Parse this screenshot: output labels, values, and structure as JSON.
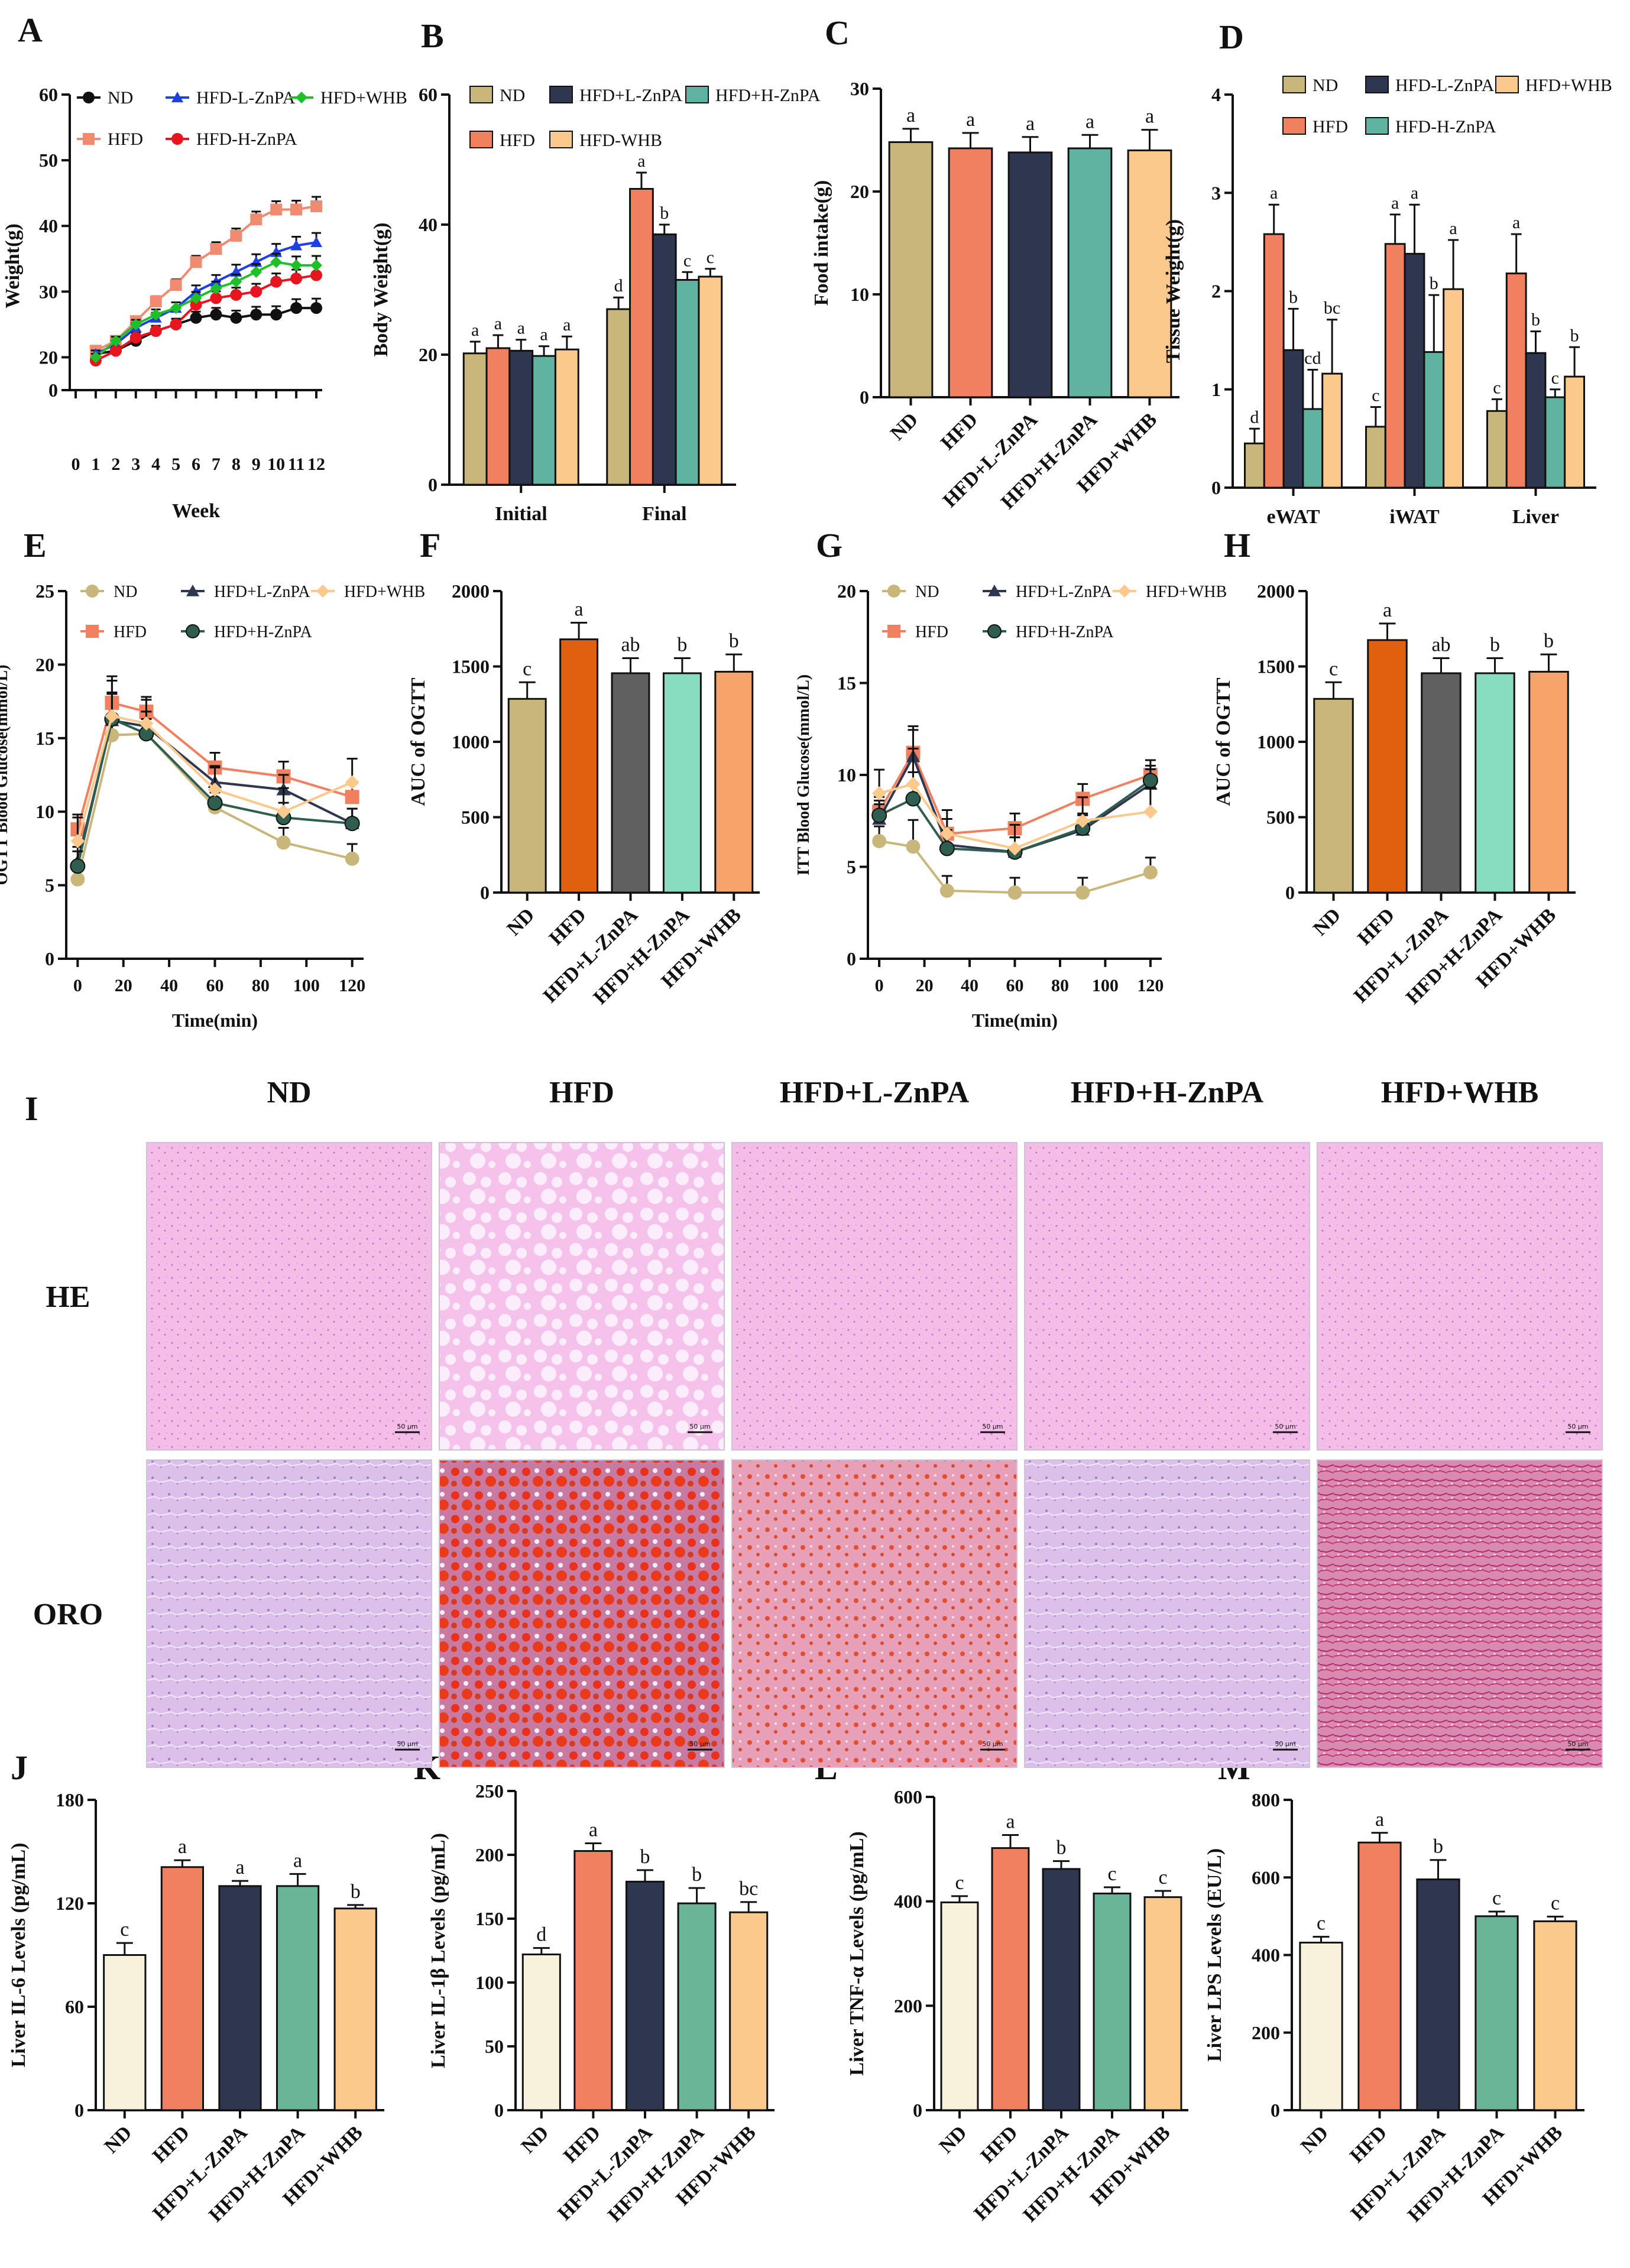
{
  "colors": {
    "ND": "#c9b67a",
    "HFD": "#f08060",
    "L": "#2f3650",
    "H": "#5fb3a0",
    "WHB": "#fbc98c",
    "cream": "#f8f1dc",
    "gray": "#606060",
    "orange": "#e06010",
    "ltgreen": "#88dcc0",
    "orangeF": "#f8a36a",
    "mint": "#6ab497",
    "HE": "#f2b8e6",
    "ORO_bg": "#d8b8e8"
  },
  "chart_data": [
    {
      "id": "A",
      "type": "line",
      "panel_label": "A",
      "ylabel": "Weight(g)",
      "xlabel": "Week",
      "ylim": [
        0,
        60
      ],
      "yticks": [
        0,
        20,
        30,
        40,
        50,
        60
      ],
      "xticks": [
        0,
        1,
        2,
        3,
        4,
        5,
        6,
        7,
        8,
        9,
        10,
        11,
        12
      ],
      "x": [
        1,
        2,
        3,
        4,
        5,
        6,
        7,
        8,
        9,
        10,
        11,
        12
      ],
      "series": [
        {
          "name": "ND",
          "color": "#111111",
          "marker": "circle",
          "values": [
            20.5,
            21,
            22.5,
            24,
            25,
            26,
            26.5,
            26,
            26.5,
            26.5,
            27.5,
            27.5
          ]
        },
        {
          "name": "HFD",
          "color": "#f08a70",
          "marker": "square",
          "values": [
            21,
            22.5,
            25.5,
            28.5,
            31,
            34.5,
            36.5,
            38.5,
            41,
            42.5,
            42.5,
            43
          ]
        },
        {
          "name": "HFD+L-ZnPA",
          "color": "#1d3ee8",
          "marker": "triangle",
          "values": [
            20.5,
            22,
            24.5,
            26,
            27.5,
            30,
            31.5,
            33,
            34.5,
            36,
            37,
            37.5
          ]
        },
        {
          "name": "HFD+H-ZnPA",
          "color": "#e8141e",
          "marker": "circle",
          "values": [
            19.5,
            21,
            23,
            24,
            25,
            28,
            29,
            29.5,
            30,
            31.5,
            32,
            32.5
          ]
        },
        {
          "name": "HFD+WHB",
          "color": "#1fbf2a",
          "marker": "diamond",
          "values": [
            20,
            22.5,
            25,
            26.5,
            27.5,
            29,
            30.5,
            31.5,
            33,
            34.5,
            34,
            34
          ]
        }
      ],
      "legend_order": [
        "ND",
        "HFD-L-ZnPA",
        "HFD+WHB",
        "HFD",
        "HFD-H-ZnPA"
      ],
      "legend_color_ref": [
        "ND",
        "HFD+L-ZnPA",
        "HFD+WHB",
        "HFD",
        "HFD+H-ZnPA"
      ]
    },
    {
      "id": "B",
      "type": "bar",
      "panel_label": "B",
      "ylabel": "Body Weight(g)",
      "ylim": [
        0,
        60
      ],
      "yticks": [
        0,
        20,
        40,
        60
      ],
      "categories": [
        "Initial",
        "Final"
      ],
      "series": [
        {
          "name": "ND",
          "values": [
            20.2,
            27
          ],
          "err": [
            1.8,
            1.8
          ],
          "letters": [
            "a",
            "d"
          ]
        },
        {
          "name": "HFD",
          "values": [
            21,
            45.5
          ],
          "err": [
            2,
            2.5
          ],
          "letters": [
            "a",
            "a"
          ]
        },
        {
          "name": "HFD+L-ZnPA",
          "values": [
            20.6,
            38.5
          ],
          "err": [
            1.7,
            1.5
          ],
          "letters": [
            "a",
            "b"
          ]
        },
        {
          "name": "HFD+H-ZnPA",
          "values": [
            19.8,
            31.5
          ],
          "err": [
            1.5,
            1.2
          ],
          "letters": [
            "a",
            "c"
          ]
        },
        {
          "name": "HFD-WHB",
          "values": [
            20.8,
            32
          ],
          "err": [
            2,
            1.2
          ],
          "letters": [
            "a",
            "c"
          ]
        }
      ],
      "legend_labels": [
        "ND",
        "HFD+L-ZnPA",
        "HFD+H-ZnPA",
        "HFD",
        "HFD-WHB"
      ]
    },
    {
      "id": "C",
      "type": "bar",
      "panel_label": "C",
      "ylabel": "Food intake(g)",
      "ylim": [
        0,
        30
      ],
      "yticks": [
        0,
        10,
        20,
        30
      ],
      "categories": [
        "ND",
        "HFD",
        "HFD+L-ZnPA",
        "HFD+H-ZnPA",
        "HFD+WHB"
      ],
      "values": [
        24.8,
        24.2,
        23.8,
        24.2,
        24
      ],
      "err": [
        1.3,
        1.5,
        1.5,
        1.3,
        2
      ],
      "letters": [
        "a",
        "a",
        "a",
        "a",
        "a"
      ]
    },
    {
      "id": "D",
      "type": "bar",
      "panel_label": "D",
      "ylabel": "Tissue Weight(g)",
      "ylim": [
        0,
        4
      ],
      "yticks": [
        0,
        1,
        2,
        3,
        4
      ],
      "categories": [
        "eWAT",
        "iWAT",
        "Liver"
      ],
      "series": [
        {
          "name": "ND",
          "values": [
            0.45,
            0.62,
            0.78
          ],
          "err": [
            0.15,
            0.2,
            0.12
          ],
          "letters": [
            "d",
            "c",
            "c"
          ]
        },
        {
          "name": "HFD",
          "values": [
            2.58,
            2.48,
            2.18
          ],
          "err": [
            0.3,
            0.3,
            0.4
          ],
          "letters": [
            "a",
            "a",
            "a"
          ]
        },
        {
          "name": "HFD-L-ZnPA",
          "values": [
            1.4,
            2.38,
            1.37
          ],
          "err": [
            0.42,
            0.5,
            0.22
          ],
          "letters": [
            "b",
            "a",
            "b"
          ]
        },
        {
          "name": "HFD-H-ZnPA",
          "values": [
            0.8,
            1.38,
            0.92
          ],
          "err": [
            0.4,
            0.58,
            0.08
          ],
          "letters": [
            "cd",
            "b",
            "c"
          ]
        },
        {
          "name": "HFD+WHB",
          "values": [
            1.16,
            2.02,
            1.13
          ],
          "err": [
            0.55,
            0.5,
            0.3
          ],
          "letters": [
            "bc",
            "a",
            "b"
          ]
        }
      ],
      "legend_labels": [
        "ND",
        "HFD-L-ZnPA",
        "HFD+WHB",
        "HFD",
        "HFD-H-ZnPA"
      ]
    },
    {
      "id": "E",
      "type": "line",
      "panel_label": "E",
      "ylabel": "OGTT Blood Glucose(mmol/L)",
      "xlabel": "Time(min)",
      "ylim": [
        0,
        25
      ],
      "yticks": [
        0,
        5,
        10,
        15,
        20,
        25
      ],
      "xlim": [
        -5,
        125
      ],
      "xticks": [
        0,
        20,
        40,
        60,
        80,
        100,
        120
      ],
      "x": [
        0,
        15,
        30,
        60,
        90,
        120
      ],
      "series": [
        {
          "name": "ND",
          "color": "#c9b67a",
          "marker": "circle",
          "values": [
            5.4,
            15.2,
            15.3,
            10.3,
            7.9,
            6.8
          ]
        },
        {
          "name": "HFD",
          "color": "#f08060",
          "marker": "square",
          "values": [
            8.8,
            17.4,
            16.8,
            13,
            12.4,
            11
          ]
        },
        {
          "name": "HFD+L-ZnPA",
          "color": "#2f3650",
          "marker": "triangle",
          "values": [
            6.6,
            16.2,
            15.8,
            12,
            11.5,
            9.2
          ]
        },
        {
          "name": "HFD+H-ZnPA",
          "color": "#2f5e50",
          "marker": "circle",
          "values": [
            6.3,
            16.3,
            15.3,
            10.6,
            9.6,
            9.2
          ]
        },
        {
          "name": "HFD+WHB",
          "color": "#fbc98c",
          "marker": "diamond",
          "values": [
            8,
            16.5,
            16,
            11.5,
            10,
            12
          ]
        }
      ],
      "legend_order": [
        "ND",
        "HFD+L-ZnPA",
        "HFD+WHB",
        "HFD",
        "HFD+H-ZnPA"
      ]
    },
    {
      "id": "F",
      "type": "bar",
      "panel_label": "F",
      "ylabel": "AUC of OGTT",
      "ylim": [
        0,
        2000
      ],
      "yticks": [
        0,
        500,
        1000,
        1500,
        2000
      ],
      "categories": [
        "ND",
        "HFD",
        "HFD+L-ZnPA",
        "HFD+H-ZnPA",
        "HFD+WHB"
      ],
      "values": [
        1285,
        1680,
        1455,
        1455,
        1465
      ],
      "err": [
        110,
        110,
        100,
        100,
        115
      ],
      "letters": [
        "c",
        "a",
        "ab",
        "b",
        "b"
      ],
      "bar_colors": [
        "#c9b67a",
        "#e06010",
        "#606060",
        "#88dcc0",
        "#f8a36a"
      ]
    },
    {
      "id": "G",
      "type": "line",
      "panel_label": "G",
      "ylabel": "ITT Blood Glucose(mmol/L)",
      "xlabel": "Time(min)",
      "ylim": [
        0,
        20
      ],
      "yticks": [
        0,
        5,
        10,
        15,
        20
      ],
      "xlim": [
        -5,
        125
      ],
      "xticks": [
        0,
        20,
        40,
        60,
        80,
        100,
        120
      ],
      "x": [
        0,
        15,
        30,
        60,
        90,
        120
      ],
      "series": [
        {
          "name": "ND",
          "color": "#c9b67a",
          "marker": "circle",
          "values": [
            6.4,
            6.1,
            3.7,
            3.6,
            3.6,
            4.7
          ]
        },
        {
          "name": "HFD",
          "color": "#f08060",
          "marker": "square",
          "values": [
            8,
            11.2,
            6.8,
            7.1,
            8.7,
            10
          ]
        },
        {
          "name": "HFD+L-ZnPA",
          "color": "#2f3650",
          "marker": "triangle",
          "values": [
            7.6,
            11,
            6.2,
            5.8,
            7,
            9.5
          ]
        },
        {
          "name": "HFD+H-ZnPA",
          "color": "#2f5e50",
          "marker": "circle",
          "values": [
            7.8,
            8.7,
            6,
            5.8,
            7.1,
            9.7
          ]
        },
        {
          "name": "HFD+WHB",
          "color": "#fbc98c",
          "marker": "diamond",
          "values": [
            9,
            9.5,
            6.8,
            6,
            7.5,
            8
          ]
        }
      ],
      "legend_order": [
        "ND",
        "HFD+L-ZnPA",
        "HFD+WHB",
        "HFD",
        "HFD+H-ZnPA"
      ]
    },
    {
      "id": "H",
      "type": "bar",
      "panel_label": "H",
      "ylabel": "AUC of OGTT",
      "ylim": [
        0,
        2000
      ],
      "yticks": [
        0,
        500,
        1000,
        1500,
        2000
      ],
      "categories": [
        "ND",
        "HFD",
        "HFD+L-ZnPA",
        "HFD+H-ZnPA",
        "HFD+WHB"
      ],
      "values": [
        1285,
        1675,
        1455,
        1455,
        1465
      ],
      "err": [
        110,
        110,
        100,
        100,
        115
      ],
      "letters": [
        "c",
        "a",
        "ab",
        "b",
        "b"
      ],
      "bar_colors": [
        "#c9b67a",
        "#e06010",
        "#606060",
        "#88dcc0",
        "#f8a36a"
      ]
    },
    {
      "id": "J",
      "type": "bar",
      "panel_label": "J",
      "ylabel": "Liver IL-6 Levels (pg/mL)",
      "ylim": [
        0,
        180
      ],
      "yticks": [
        0,
        60,
        120,
        180
      ],
      "categories": [
        "ND",
        "HFD",
        "HFD+L-ZnPA",
        "HFD+H-ZnPA",
        "HFD+WHB"
      ],
      "values": [
        90,
        141,
        130,
        130,
        117
      ],
      "err": [
        7,
        4,
        3,
        7,
        2
      ],
      "letters": [
        "c",
        "a",
        "a",
        "a",
        "b"
      ],
      "bar_colors": [
        "#f8f1dc",
        "#f08060",
        "#2f3650",
        "#6ab497",
        "#fbc98c"
      ]
    },
    {
      "id": "K",
      "type": "bar",
      "panel_label": "K",
      "ylabel": "Liver IL-1β Levels (pg/mL)",
      "ylim": [
        0,
        250
      ],
      "yticks": [
        0,
        50,
        100,
        150,
        200,
        250
      ],
      "categories": [
        "ND",
        "HFD",
        "HFD+L-ZnPA",
        "HFD+H-ZnPA",
        "HFD+WHB"
      ],
      "values": [
        122,
        203,
        179,
        162,
        155
      ],
      "err": [
        5,
        6,
        9,
        12,
        8
      ],
      "letters": [
        "d",
        "a",
        "b",
        "b",
        "bc"
      ],
      "bar_colors": [
        "#f8f1dc",
        "#f08060",
        "#2f3650",
        "#6ab497",
        "#fbc98c"
      ]
    },
    {
      "id": "L",
      "type": "bar",
      "panel_label": "L",
      "ylabel": "Liver TNF-α Levels (pg/mL)",
      "ylim": [
        0,
        600
      ],
      "yticks": [
        0,
        200,
        400,
        600
      ],
      "categories": [
        "ND",
        "HFD",
        "HFD+L-ZnPA",
        "HFD+H-ZnPA",
        "HFD+WHB"
      ],
      "values": [
        398,
        502,
        462,
        415,
        408
      ],
      "err": [
        12,
        25,
        15,
        12,
        12
      ],
      "letters": [
        "c",
        "a",
        "b",
        "c",
        "c"
      ],
      "bar_colors": [
        "#f8f1dc",
        "#f08060",
        "#2f3650",
        "#6ab497",
        "#fbc98c"
      ]
    },
    {
      "id": "M",
      "type": "bar",
      "panel_label": "M",
      "ylabel": "Liver LPS Levels (EU/L)",
      "ylim": [
        0,
        800
      ],
      "yticks": [
        0,
        200,
        400,
        600,
        800
      ],
      "categories": [
        "ND",
        "HFD",
        "HFD+L-ZnPA",
        "HFD+H-ZnPA",
        "HFD+WHB"
      ],
      "values": [
        432,
        690,
        595,
        500,
        487
      ],
      "err": [
        15,
        25,
        50,
        12,
        12
      ],
      "letters": [
        "c",
        "a",
        "b",
        "c",
        "c"
      ],
      "bar_colors": [
        "#f8f1dc",
        "#f08060",
        "#2f3650",
        "#6ab497",
        "#fbc98c"
      ]
    }
  ],
  "histology": {
    "panel_label": "I",
    "columns": [
      "ND",
      "HFD",
      "HFD+L-ZnPA",
      "HFD+H-ZnPA",
      "HFD+WHB"
    ],
    "rows": [
      "HE",
      "ORO"
    ],
    "scale": "50 μm"
  }
}
